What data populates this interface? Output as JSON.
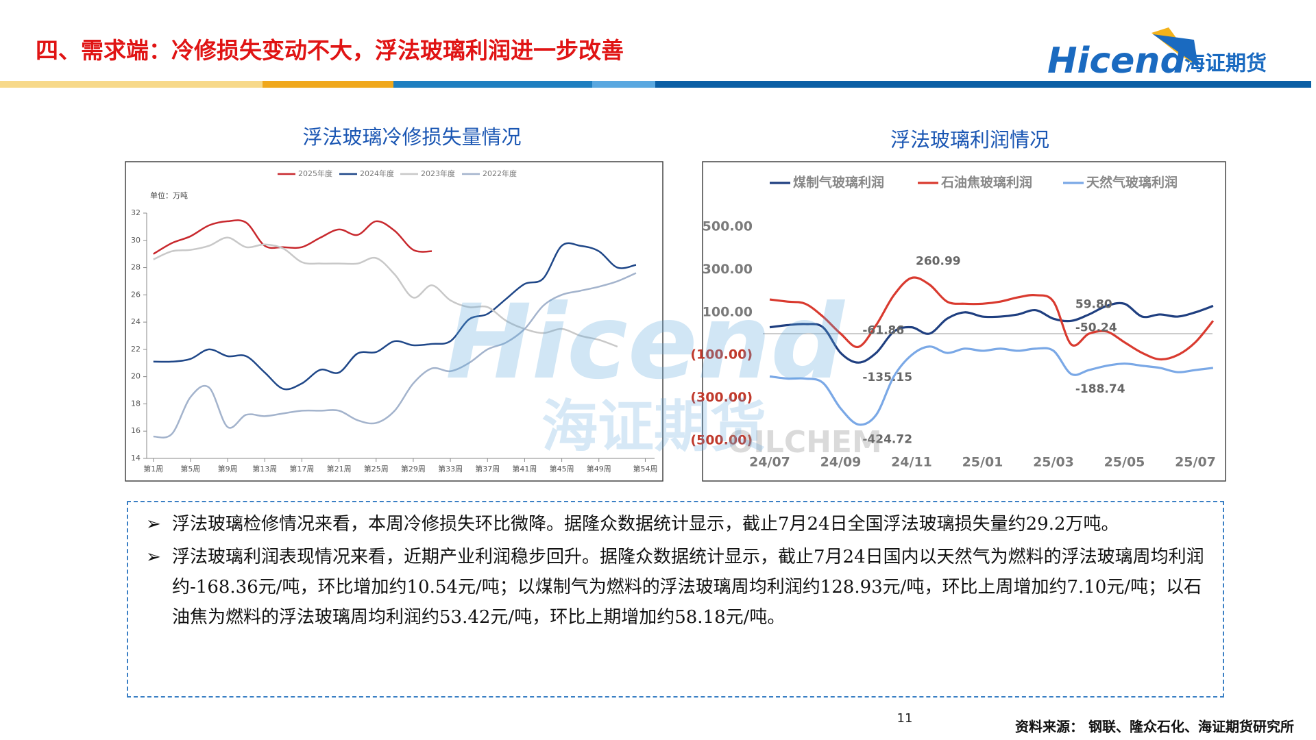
{
  "header": {
    "title": "四、需求端：冷修损失变动不大，浮法玻璃利润进一步改善",
    "logo": "Hicend",
    "logo_cn": "海证期货"
  },
  "chart_data": [
    {
      "type": "line",
      "title": "浮法玻璃冷修损失量情况",
      "unit": "单位：万吨",
      "x": [
        1,
        3,
        5,
        7,
        9,
        11,
        13,
        15,
        17,
        19,
        21,
        23,
        25,
        27,
        29,
        31,
        33,
        35,
        37,
        39,
        41,
        43,
        45,
        47,
        49,
        51,
        53
      ],
      "xlim": [
        0.5,
        55
      ],
      "xticks": [
        {
          "value": 1,
          "label": "第1周"
        },
        {
          "value": 5,
          "label": "第5周"
        },
        {
          "value": 9,
          "label": "第9周"
        },
        {
          "value": 13,
          "label": "第13周"
        },
        {
          "value": 17,
          "label": "第17周"
        },
        {
          "value": 21,
          "label": "第21周"
        },
        {
          "value": 25,
          "label": "第25周"
        },
        {
          "value": 29,
          "label": "第29周"
        },
        {
          "value": 33,
          "label": "第33周"
        },
        {
          "value": 37,
          "label": "第37周"
        },
        {
          "value": 41,
          "label": "第41周"
        },
        {
          "value": 45,
          "label": "第45周"
        },
        {
          "value": 49,
          "label": "第49周"
        },
        {
          "value": 54,
          "label": "第54周"
        }
      ],
      "ylim": [
        14,
        32
      ],
      "yticks": [
        14,
        16,
        18,
        20,
        22,
        24,
        26,
        28,
        30,
        32
      ],
      "grid": false,
      "series": [
        {
          "name": "2025年度",
          "color": "#c8282d",
          "values": [
            29.0,
            29.8,
            30.3,
            31.1,
            31.4,
            31.3,
            29.6,
            29.5,
            29.5,
            30.2,
            30.8,
            30.4,
            31.4,
            30.7,
            29.3,
            29.2,
            null,
            null,
            null,
            null,
            null,
            null,
            null,
            null,
            null,
            null,
            null
          ]
        },
        {
          "name": "2024年度",
          "color": "#1f4788",
          "values": [
            21.1,
            21.1,
            21.3,
            22.0,
            21.5,
            21.5,
            20.3,
            19.1,
            19.5,
            20.5,
            20.3,
            21.7,
            21.8,
            22.6,
            22.3,
            22.4,
            22.6,
            24.2,
            24.6,
            25.7,
            26.8,
            27.2,
            29.6,
            29.6,
            29.2,
            28.0,
            28.2
          ]
        },
        {
          "name": "2023年度",
          "color": "#c8c8c8",
          "values": [
            28.6,
            29.2,
            29.3,
            29.6,
            30.2,
            29.5,
            29.7,
            29.4,
            28.4,
            28.3,
            28.3,
            28.3,
            28.7,
            27.5,
            25.8,
            26.7,
            25.6,
            25.1,
            25.1,
            24.1,
            23.5,
            23.2,
            23.5,
            23.0,
            22.7,
            22.2,
            null
          ]
        },
        {
          "name": "2022年度",
          "color": "#a3b3cc",
          "values": [
            15.6,
            15.8,
            18.5,
            19.2,
            16.3,
            17.2,
            17.1,
            17.3,
            17.5,
            17.5,
            17.5,
            16.8,
            16.6,
            17.5,
            19.5,
            20.6,
            20.4,
            21.0,
            22.0,
            22.5,
            23.5,
            25.2,
            26.0,
            26.3,
            26.6,
            27.0,
            27.6
          ]
        }
      ]
    },
    {
      "type": "line",
      "title": "浮法玻璃利润情况",
      "watermark": "OILCHEM",
      "categories": [
        "24/07",
        null,
        null,
        null,
        "24/09",
        null,
        null,
        null,
        "24/11",
        null,
        null,
        null,
        "25/01",
        null,
        null,
        null,
        "25/03",
        null,
        null,
        null,
        "25/05",
        null,
        null,
        null,
        "25/07",
        null
      ],
      "ylim": [
        -500,
        500
      ],
      "yticks": [
        {
          "value": 500,
          "label": "500.00"
        },
        {
          "value": 300,
          "label": "300.00"
        },
        {
          "value": 100,
          "label": "100.00"
        },
        {
          "value": -100,
          "label": "(100.00)"
        },
        {
          "value": -300,
          "label": "(300.00)"
        },
        {
          "value": -500,
          "label": "(500.00)"
        }
      ],
      "grid": false,
      "series": [
        {
          "name": "煤制气玻璃利润",
          "color": "#1f3f80",
          "values": [
            30,
            40,
            45,
            30,
            -90,
            -135.15,
            -90,
            10,
            30,
            0,
            70,
            100,
            80,
            80,
            90,
            110,
            70,
            59.8,
            90,
            130,
            140,
            80,
            90,
            80,
            100,
            130
          ],
          "value_labels": [
            null,
            null,
            null,
            null,
            null,
            "-135.15",
            null,
            null,
            null,
            null,
            null,
            null,
            null,
            null,
            null,
            null,
            null,
            "59.80",
            null,
            null,
            null,
            null,
            null,
            null,
            null,
            null
          ]
        },
        {
          "name": "石油焦玻璃利润",
          "color": "#d93a2f",
          "values": [
            160,
            150,
            140,
            80,
            0,
            -61.86,
            40,
            180,
            260.99,
            230,
            150,
            140,
            140,
            150,
            170,
            180,
            150,
            -50.24,
            0,
            10,
            -40,
            -90,
            -120,
            -100,
            -40,
            60
          ],
          "value_labels": [
            null,
            null,
            null,
            null,
            null,
            "-61.86",
            null,
            null,
            "260.99",
            null,
            null,
            null,
            null,
            null,
            null,
            null,
            null,
            "-50.24",
            null,
            null,
            null,
            null,
            null,
            null,
            null,
            null
          ]
        },
        {
          "name": "天然气玻璃利润",
          "color": "#7aa8e6",
          "values": [
            -200,
            -210,
            -210,
            -230,
            -350,
            -424.72,
            -380,
            -200,
            -100,
            -60,
            -90,
            -70,
            -80,
            -70,
            -80,
            -70,
            -80,
            -188.74,
            -170,
            -150,
            -140,
            -150,
            -160,
            -180,
            -170,
            -160
          ],
          "value_labels": [
            null,
            null,
            null,
            null,
            null,
            "-424.72",
            null,
            null,
            null,
            null,
            null,
            null,
            null,
            null,
            null,
            null,
            null,
            "-188.74",
            null,
            null,
            null,
            null,
            null,
            null,
            null,
            null
          ]
        }
      ]
    }
  ],
  "bullets": [
    "浮法玻璃检修情况来看，本周冷修损失环比微降。据隆众数据统计显示，截止7月24日全国浮法玻璃损失量约29.2万吨。",
    "浮法玻璃利润表现情况来看，近期产业利润稳步回升。据隆众数据统计显示，截止7月24日国内以天然气为燃料的浮法玻璃周均利润约-168.36元/吨，环比增加约10.54元/吨；以煤制气为燃料的浮法玻璃周均利润约128.93元/吨，环比上周增加约7.10元/吨；以石油焦为燃料的浮法玻璃周均利润约53.42元/吨，环比上期增加约58.18元/吨。"
  ],
  "page_number": "11",
  "source": "资料来源： 钢联、隆众石化、海证期货研究所"
}
